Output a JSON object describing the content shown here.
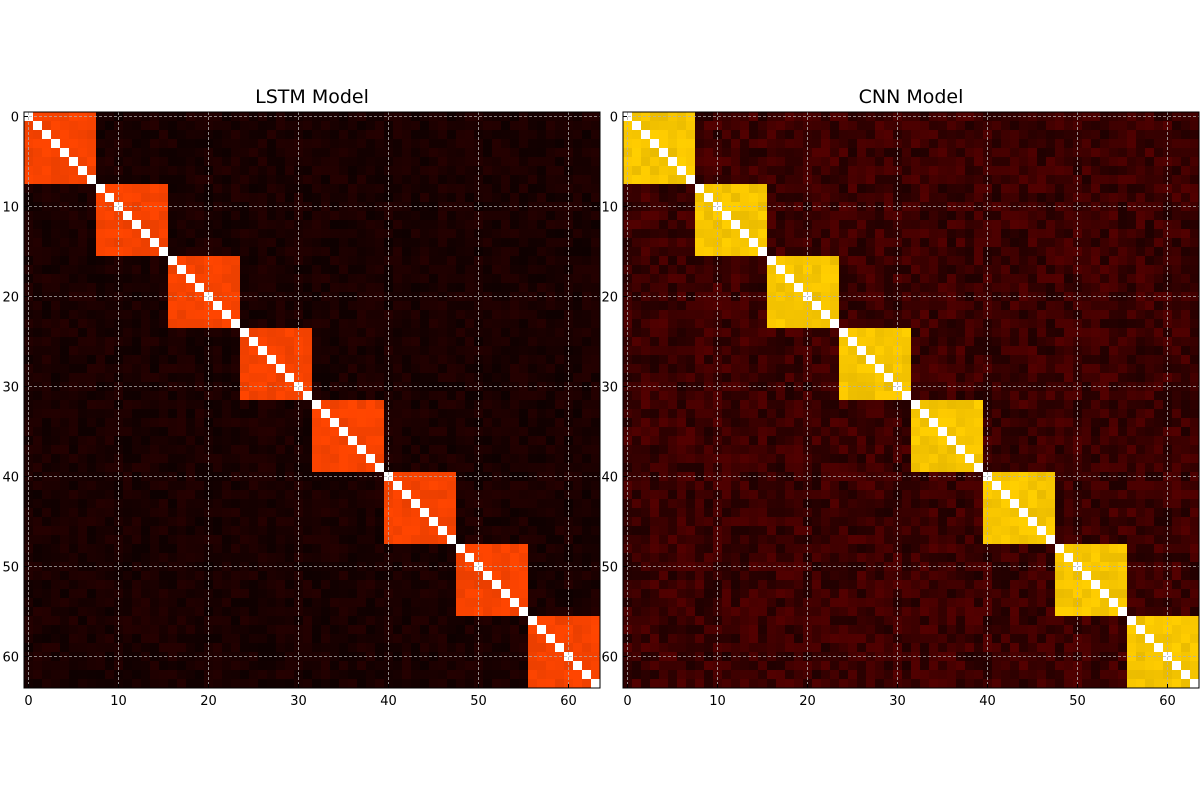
{
  "chart_data": [
    {
      "type": "heatmap",
      "title": "LSTM Model",
      "matrix_size": 64,
      "block_size": 8,
      "diagonal_value": 1.0,
      "within_block_value": 0.6,
      "off_block_value": 0.08,
      "colormap": "hot",
      "block_color": "#ff4500",
      "diagonal_color": "#ffffff",
      "background_color": "#1a0000",
      "x_ticks": [
        "0",
        "10",
        "20",
        "30",
        "40",
        "50",
        "60"
      ],
      "y_ticks": [
        "0",
        "10",
        "20",
        "30",
        "40",
        "50",
        "60"
      ],
      "xlim": [
        -0.5,
        63.5
      ],
      "ylim": [
        63.5,
        -0.5
      ],
      "grid": true
    },
    {
      "type": "heatmap",
      "title": "CNN Model",
      "matrix_size": 64,
      "block_size": 8,
      "diagonal_value": 1.0,
      "within_block_value": 0.8,
      "off_block_value": 0.15,
      "colormap": "hot",
      "block_color": "#ffcc00",
      "diagonal_color": "#ffffff",
      "background_color": "#3a0000",
      "x_ticks": [
        "0",
        "10",
        "20",
        "30",
        "40",
        "50",
        "60"
      ],
      "y_ticks": [
        "0",
        "10",
        "20",
        "30",
        "40",
        "50",
        "60"
      ],
      "xlim": [
        -0.5,
        63.5
      ],
      "ylim": [
        63.5,
        -0.5
      ],
      "grid": true
    }
  ]
}
